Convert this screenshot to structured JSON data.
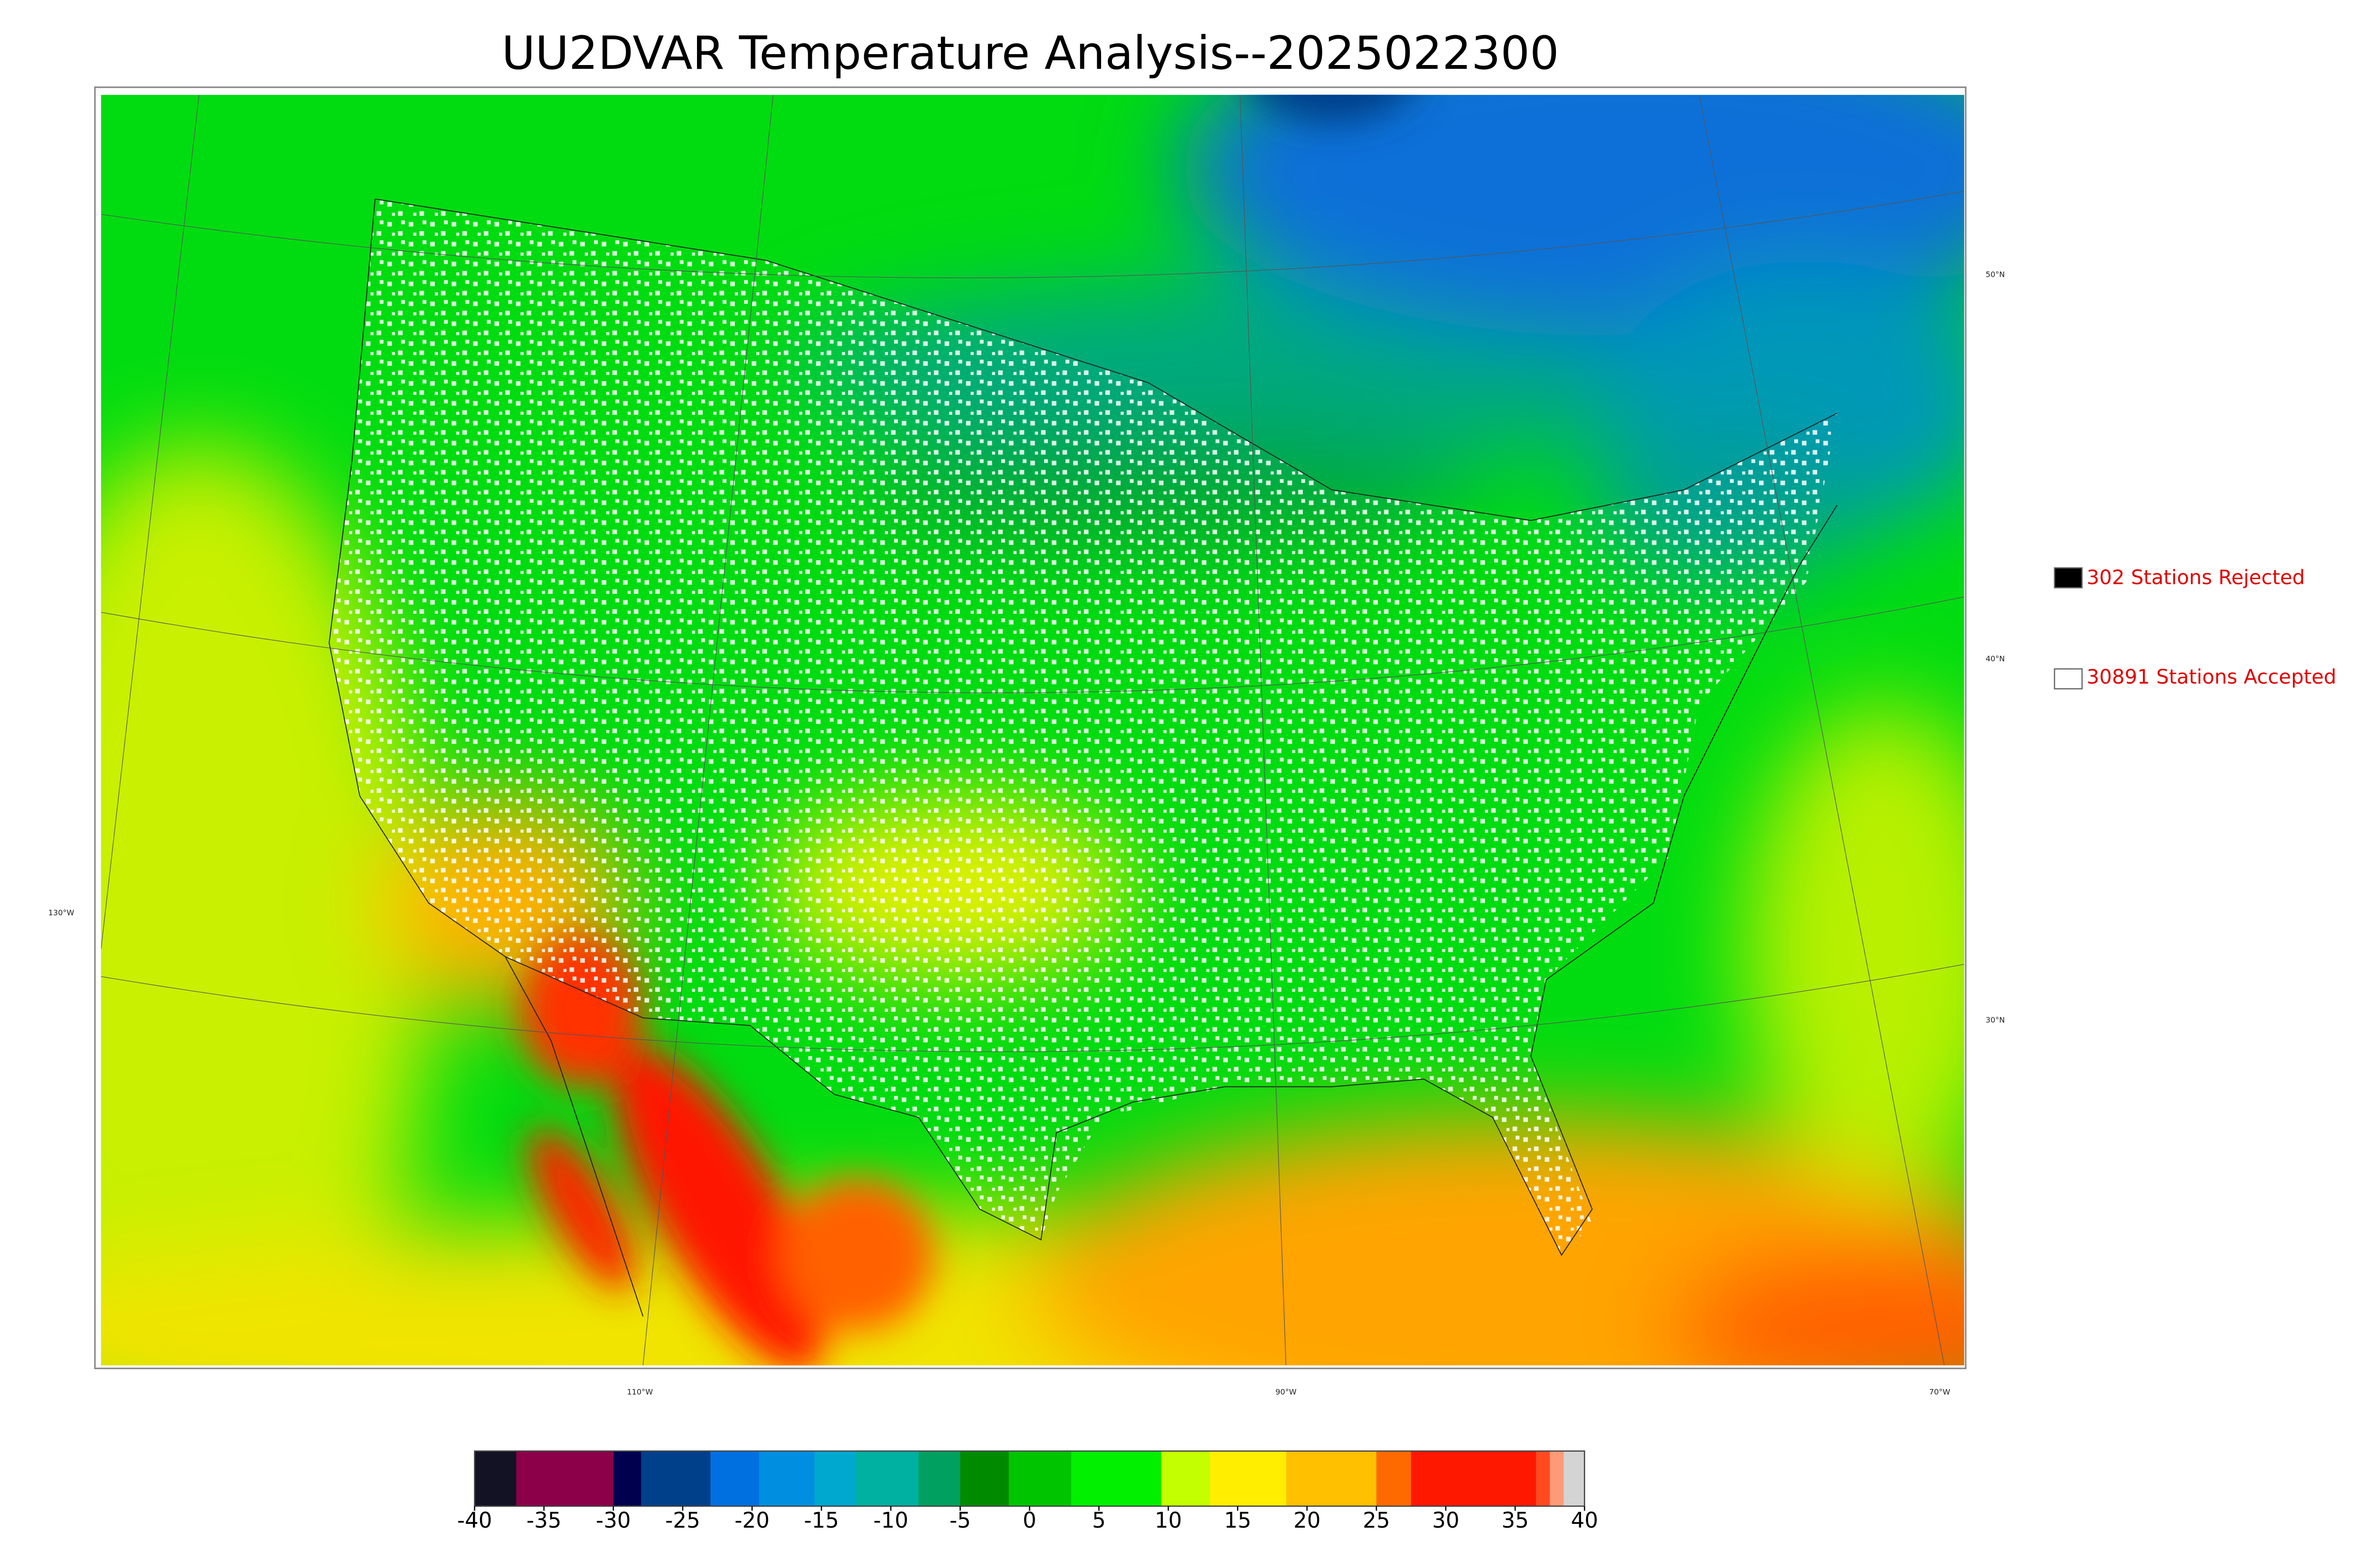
{
  "title": "UU2DVAR Temperature Analysis--2025022300",
  "legend": [
    {
      "label": "302 Stations Rejected",
      "color": "#000000"
    },
    {
      "label": "30891 Stations Accepted",
      "color": "#ffffff"
    }
  ],
  "longitude_labels": [
    "130°W",
    "110°W",
    "90°W",
    "70°W"
  ],
  "latitude_labels": [
    "50°N",
    "40°N",
    "30°N"
  ],
  "colorbar": {
    "range": [
      -40,
      40
    ],
    "ticks": [
      -40,
      -35,
      -30,
      -25,
      -20,
      -15,
      -10,
      -5,
      0,
      5,
      10,
      15,
      20,
      25,
      30,
      35,
      40
    ],
    "levels": [
      -40,
      -37,
      -30,
      -28,
      -23,
      -19.5,
      -15.5,
      -12.5,
      -8,
      -5,
      -1.5,
      3,
      9.5,
      13,
      18.5,
      25,
      27.5,
      36.5,
      37.5,
      38.5,
      40
    ],
    "colors": [
      "#121224",
      "#8b0048",
      "#00004f",
      "#003f8a",
      "#0070e0",
      "#008fe0",
      "#00a8d0",
      "#00b0a0",
      "#00a060",
      "#008a00",
      "#00c400",
      "#00f000",
      "#c4ff00",
      "#ffee00",
      "#ffc000",
      "#ff6a00",
      "#ff1800",
      "#ff4a20",
      "#ff9a78",
      "#d4d4d4"
    ]
  }
}
